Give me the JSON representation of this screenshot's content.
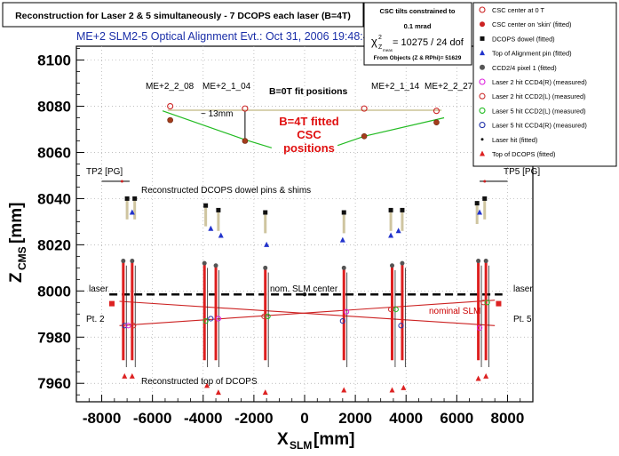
{
  "chart_data": {
    "type": "scatter",
    "title": "Reconstruction for Laser 2 & 5 simultaneously - 7 DCOPS each laser (B=4T)",
    "subtitle": "ME+2 SLM2-5 Optical Alignment Evt.:  Oct 31, 2006 19:48:49",
    "xlabel_main": "X",
    "xlabel_sub": "SLM",
    "xlabel_unit": " [mm]",
    "ylabel_main": "Z",
    "ylabel_sub": "CMS",
    "ylabel_unit": " [mm]",
    "xlim": [
      -9000,
      9000
    ],
    "ylim": [
      7952,
      8106
    ],
    "xticks": [
      "-8000",
      "-6000",
      "-4000",
      "-2000",
      "0",
      "2000",
      "4000",
      "6000",
      "8000"
    ],
    "yticks": [
      "7960",
      "7980",
      "8000",
      "8020",
      "8040",
      "8060",
      "8080",
      "8100"
    ],
    "grid": true,
    "stats_box": {
      "line1": "CSC tilts constrained to",
      "line2": "0.1 mrad",
      "chi_symbol": "χ",
      "chi_sup": "2",
      "chi_sub": "Z",
      "chi_subsub": "meas",
      "chi_value": " = 10275 / 24 dof",
      "line4": "From Objects (Z & RPhi)= 51629"
    },
    "legend_position": "top-right",
    "legend": [
      {
        "label": "CSC center at 0 T",
        "marker": "open-circle",
        "color": "#cc2222"
      },
      {
        "label": "CSC center on 'skin' (fitted)",
        "marker": "filled-circle",
        "color": "#cc2222"
      },
      {
        "label": "DCOPS dowel (fitted)",
        "marker": "square",
        "color": "#111111"
      },
      {
        "label": "Top of Alignment pin (fitted)",
        "marker": "triangle",
        "color": "#2233cc"
      },
      {
        "label": "CCD2/4 pixel 1 (fitted)",
        "marker": "filled-circle",
        "color": "#555555"
      },
      {
        "label": "Laser 2 hit CCD4(R) (measured)",
        "marker": "open-circle",
        "color": "#dd22dd"
      },
      {
        "label": "Laser 2 hit CCD2(L) (measured)",
        "marker": "open-circle",
        "color": "#cc3333"
      },
      {
        "label": "Laser 5 hit CCD2(L) (measured)",
        "marker": "open-circle",
        "color": "#22bb22"
      },
      {
        "label": "Laser 5 hit CCD4(R) (measured)",
        "marker": "open-circle",
        "color": "#2233aa"
      },
      {
        "label": "Laser hit (fitted)",
        "marker": "dot",
        "color": "#111111"
      },
      {
        "label": "Top of DCOPS (fitted)",
        "marker": "triangle",
        "color": "#dd2222"
      }
    ],
    "annotations": {
      "me_labels": [
        {
          "text": "ME+2_2_08",
          "x": -6300,
          "z": 8083
        },
        {
          "text": "ME+2_1_04",
          "x": -3550,
          "z": 8083
        },
        {
          "text": "ME+2_1_14",
          "x": 2200,
          "z": 8083
        },
        {
          "text": "ME+2_2_27",
          "x": 4600,
          "z": 8083
        }
      ],
      "b0_label": "B=0T fit positions",
      "b4_label_1": "B=4T fitted",
      "b4_label_2": "CSC",
      "b4_label_3": "positions",
      "mm_label": "~ 13mm",
      "tp2": "TP2 [PG]",
      "tp5": "TP5 [PG]",
      "dowel_label": "Reconstructed DCOPS dowel pins & shims",
      "laser_left": "laser",
      "laser_right": "laser",
      "pt2": "Pt. 2",
      "pt5": "Pt. 5",
      "slm_center": "nom. SLM center",
      "nominal_slm": "nominal SLM",
      "top_dcops_label": "Reconstructed top of DCOPS"
    },
    "csc_0T": [
      {
        "x": -5300,
        "z": 8080
      },
      {
        "x": -2350,
        "z": 8079
      },
      {
        "x": 2350,
        "z": 8079
      },
      {
        "x": 5200,
        "z": 8078
      }
    ],
    "csc_fitted": [
      {
        "x": -5300,
        "z": 8074
      },
      {
        "x": -2350,
        "z": 8065
      },
      {
        "x": 2350,
        "z": 8067
      },
      {
        "x": 5200,
        "z": 8073
      }
    ],
    "dcops_dowels": [
      {
        "x": -7000,
        "z": 8040
      },
      {
        "x": -6700,
        "z": 8040
      },
      {
        "x": -3900,
        "z": 8037
      },
      {
        "x": -3400,
        "z": 8035
      },
      {
        "x": -1550,
        "z": 8034
      },
      {
        "x": 1550,
        "z": 8034
      },
      {
        "x": 3400,
        "z": 8035
      },
      {
        "x": 3850,
        "z": 8035
      },
      {
        "x": 6800,
        "z": 8038
      },
      {
        "x": 7100,
        "z": 8040
      }
    ],
    "alignment_pins": [
      {
        "x": -6800,
        "z": 8034
      },
      {
        "x": -3700,
        "z": 8027
      },
      {
        "x": -3300,
        "z": 8024
      },
      {
        "x": -1500,
        "z": 8020
      },
      {
        "x": 1500,
        "z": 8022
      },
      {
        "x": 3400,
        "z": 8024
      },
      {
        "x": 3700,
        "z": 8026
      },
      {
        "x": 6900,
        "z": 8034
      }
    ],
    "ccd_pixels": [
      {
        "x": -7150,
        "z": 8013
      },
      {
        "x": -6800,
        "z": 8013
      },
      {
        "x": -3950,
        "z": 8012
      },
      {
        "x": -3500,
        "z": 8011
      },
      {
        "x": -1550,
        "z": 8010
      },
      {
        "x": 1550,
        "z": 8010
      },
      {
        "x": 3450,
        "z": 8011
      },
      {
        "x": 3850,
        "z": 8012
      },
      {
        "x": 6850,
        "z": 8013
      },
      {
        "x": 7150,
        "z": 8013
      }
    ],
    "top_dcops": [
      {
        "x": -7100,
        "z": 7963
      },
      {
        "x": -6800,
        "z": 7963
      },
      {
        "x": -3850,
        "z": 7959
      },
      {
        "x": -3400,
        "z": 7956
      },
      {
        "x": -1550,
        "z": 7956
      },
      {
        "x": 1550,
        "z": 7957
      },
      {
        "x": 3450,
        "z": 7957
      },
      {
        "x": 3900,
        "z": 7958
      },
      {
        "x": 6850,
        "z": 7962
      },
      {
        "x": 7150,
        "z": 7963
      }
    ],
    "laser_hits": [
      {
        "x": -7100,
        "z": 7985
      },
      {
        "x": -6950,
        "z": 7985
      },
      {
        "x": -6750,
        "z": 7985
      },
      {
        "x": -3900,
        "z": 7987
      },
      {
        "x": -3700,
        "z": 7988
      },
      {
        "x": -3400,
        "z": 7988
      },
      {
        "x": -1600,
        "z": 7989
      },
      {
        "x": -1450,
        "z": 7989
      },
      {
        "x": 1500,
        "z": 7987
      },
      {
        "x": 1650,
        "z": 7991
      },
      {
        "x": 3400,
        "z": 7992
      },
      {
        "x": 3600,
        "z": 7992
      },
      {
        "x": 3800,
        "z": 7985
      },
      {
        "x": 6900,
        "z": 7984
      },
      {
        "x": 7050,
        "z": 7995
      },
      {
        "x": 7200,
        "z": 7995
      }
    ]
  }
}
